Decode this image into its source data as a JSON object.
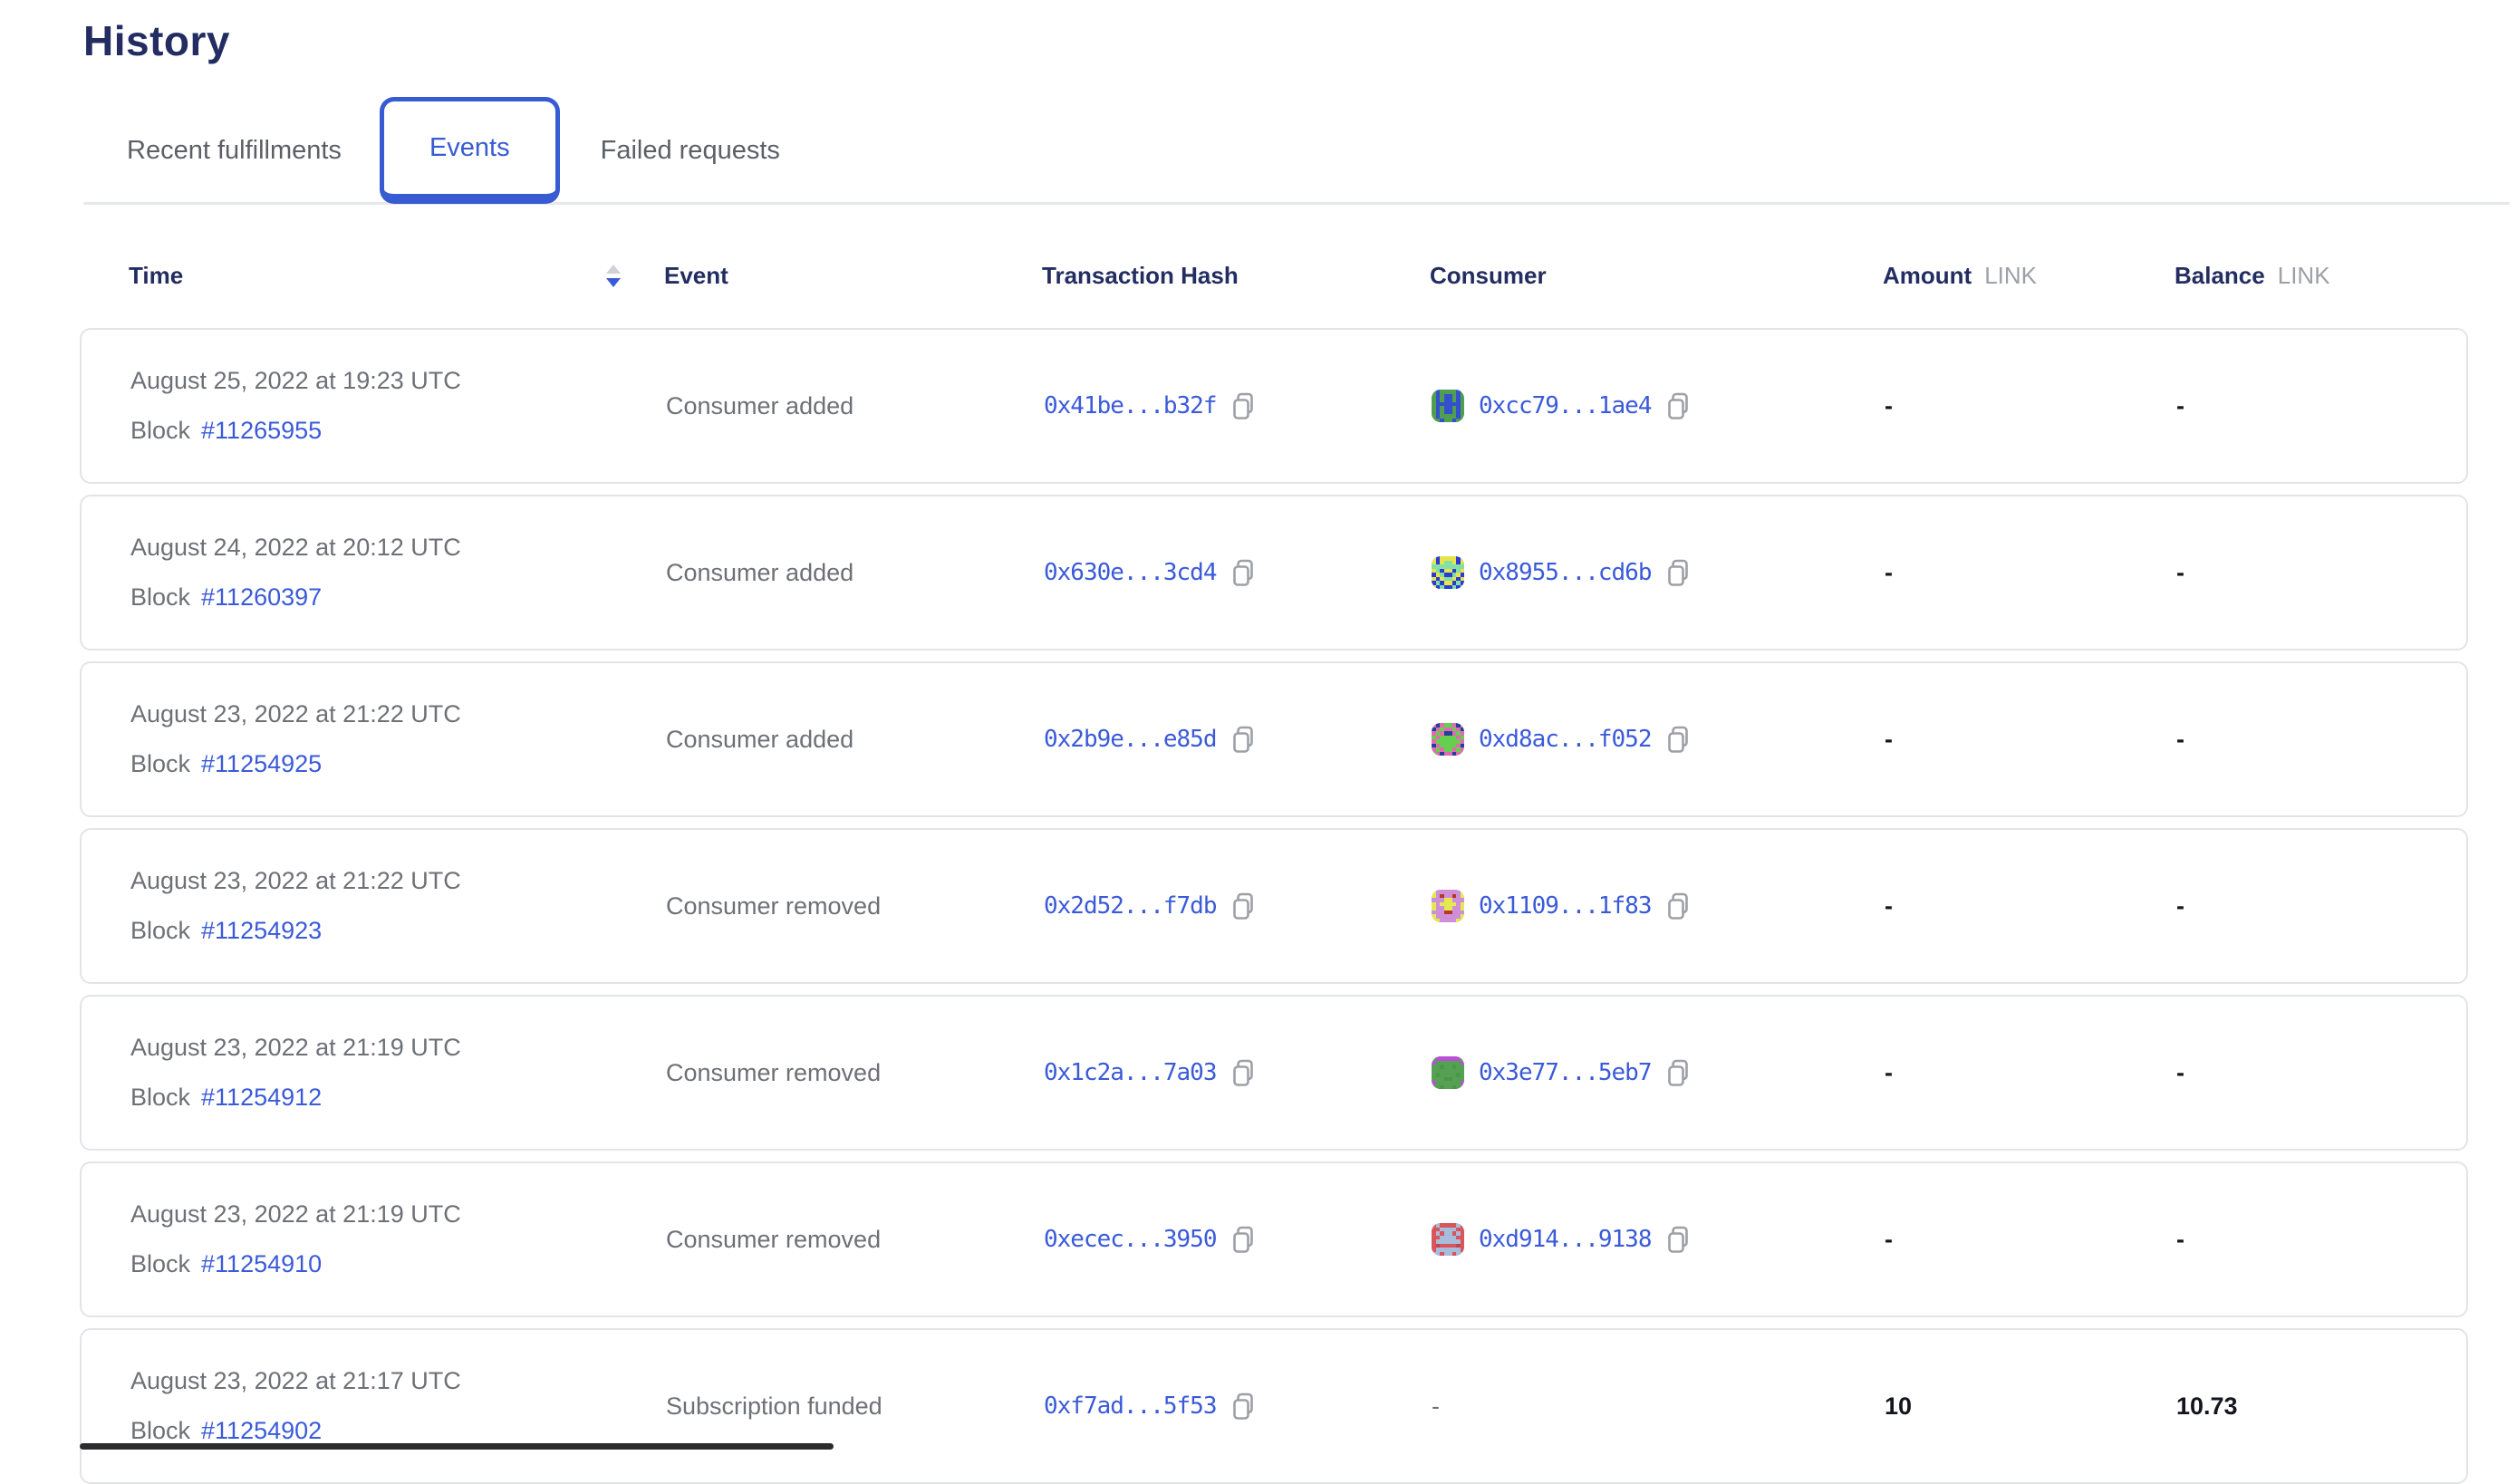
{
  "page": {
    "title": "History"
  },
  "tabs": [
    {
      "label": "Recent fulfillments",
      "active": false
    },
    {
      "label": "Events",
      "active": true
    },
    {
      "label": "Failed requests",
      "active": false
    }
  ],
  "table": {
    "columns": {
      "time": "Time",
      "event": "Event",
      "tx": "Transaction Hash",
      "consumer": "Consumer",
      "amount": "Amount",
      "balance": "Balance",
      "unit": "LINK"
    },
    "sort": {
      "column": "Time",
      "direction": "desc"
    }
  },
  "rows": [
    {
      "date": "August 25, 2022 at 19:23 UTC",
      "block_label": "Block",
      "block_number": "#11265955",
      "event": "Consumer added",
      "tx_hash": "0x41be...b32f",
      "consumer": {
        "address": "0xcc79...1ae4",
        "blockie": {
          "bg": "#4f9e52",
          "c1": "#3550cc",
          "c2": "#3d7f42",
          "pattern": [
            "01000010",
            "01011010",
            "01011010",
            "01111110",
            "01011010",
            "01011010",
            "01000010",
            "00100100"
          ]
        }
      },
      "amount": "-",
      "balance": "-"
    },
    {
      "date": "August 24, 2022 at 20:12 UTC",
      "block_label": "Block",
      "block_number": "#11260397",
      "event": "Consumer added",
      "tx_hash": "0x630e...3cd4",
      "consumer": {
        "address": "0x8955...cd6b",
        "blockie": {
          "bg": "#2b3ad6",
          "c1": "#e5e549",
          "c2": "#82dfa6",
          "pattern": [
            "10111101",
            "10122101",
            "22222222",
            "12011021",
            "01200210",
            "10122101",
            "02011020",
            "10200201"
          ]
        }
      },
      "amount": "-",
      "balance": "-"
    },
    {
      "date": "August 23, 2022 at 21:22 UTC",
      "block_label": "Block",
      "block_number": "#11254925",
      "event": "Consumer added",
      "tx_hash": "0x2b9e...e85d",
      "consumer": {
        "address": "0xd8ac...f052",
        "blockie": {
          "bg": "#67cf4e",
          "c1": "#e06bb4",
          "c2": "#24409e",
          "pattern": [
            "12100121",
            "21011012",
            "10122101",
            "01000010",
            "10000001",
            "21000012",
            "10100101",
            "01211210"
          ]
        }
      },
      "amount": "-",
      "balance": "-"
    },
    {
      "date": "August 23, 2022 at 21:22 UTC",
      "block_label": "Block",
      "block_number": "#11254923",
      "event": "Consumer removed",
      "tx_hash": "0x2d52...f7db",
      "consumer": {
        "address": "0x1109...1f83",
        "blockie": {
          "bg": "#cf8ed8",
          "c1": "#e3e94f",
          "c2": "#b5391f",
          "pattern": [
            "10000001",
            "10200201",
            "00011000",
            "10111101",
            "10011001",
            "00022000",
            "10000001",
            "11000011"
          ]
        }
      },
      "amount": "-",
      "balance": "-"
    },
    {
      "date": "August 23, 2022 at 21:19 UTC",
      "block_label": "Block",
      "block_number": "#11254912",
      "event": "Consumer removed",
      "tx_hash": "0x1c2a...7a03",
      "consumer": {
        "address": "0x3e77...5eb7",
        "blockie": {
          "bg": "#56a054",
          "c1": "#b94fd6",
          "c2": "#479947",
          "pattern": [
            "01111110",
            "10000001",
            "00200200",
            "00000000",
            "02000020",
            "00022000",
            "10000001",
            "00200200"
          ]
        }
      },
      "amount": "-",
      "balance": "-"
    },
    {
      "date": "August 23, 2022 at 21:19 UTC",
      "block_label": "Block",
      "block_number": "#11254910",
      "event": "Consumer removed",
      "tx_hash": "0xecec...3950",
      "consumer": {
        "address": "0xd914...9138",
        "blockie": {
          "bg": "#d8555c",
          "c1": "#a8bcdc",
          "c2": "#c4444c",
          "pattern": [
            "01000010",
            "00111100",
            "01011010",
            "00111100",
            "01111110",
            "02000020",
            "01111110",
            "11011011"
          ]
        }
      },
      "amount": "-",
      "balance": "-"
    },
    {
      "date": "August 23, 2022 at 21:17 UTC",
      "block_label": "Block",
      "block_number": "#11254902",
      "event": "Subscription funded",
      "tx_hash": "0xf7ad...5f53",
      "consumer": null,
      "consumer_placeholder": "-",
      "amount": "10",
      "balance": "10.73"
    }
  ],
  "colors": {
    "accent": "#375bd2",
    "link": "#3a5ad9",
    "heading": "#232d61",
    "body_gray": "#6d7076",
    "muted_gray": "#9da0a6"
  }
}
